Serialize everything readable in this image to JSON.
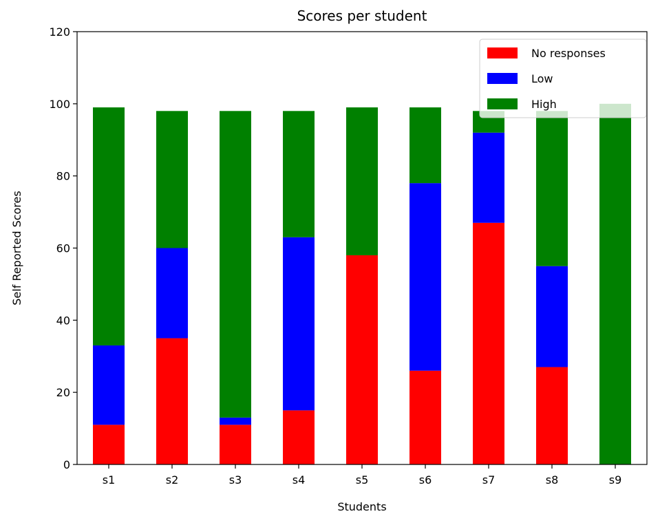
{
  "chart_data": {
    "type": "bar",
    "stacked": true,
    "title": "Scores per student",
    "xlabel": "Students",
    "ylabel": "Self Reported Scores",
    "ylim": [
      0,
      120
    ],
    "yticks": [
      0,
      20,
      40,
      60,
      80,
      100,
      120
    ],
    "categories": [
      "s1",
      "s2",
      "s3",
      "s4",
      "s5",
      "s6",
      "s7",
      "s8",
      "s9"
    ],
    "series": [
      {
        "name": "No responses",
        "color": "#ff0000",
        "values": [
          11,
          35,
          11,
          15,
          58,
          26,
          67,
          27,
          0
        ]
      },
      {
        "name": "Low",
        "color": "#0000ff",
        "values": [
          22,
          25,
          2,
          48,
          0,
          52,
          25,
          28,
          0
        ]
      },
      {
        "name": "High",
        "color": "#008000",
        "values": [
          66,
          38,
          85,
          35,
          41,
          21,
          6,
          43,
          100
        ]
      }
    ],
    "grid": false,
    "legend_position": "top-right"
  }
}
